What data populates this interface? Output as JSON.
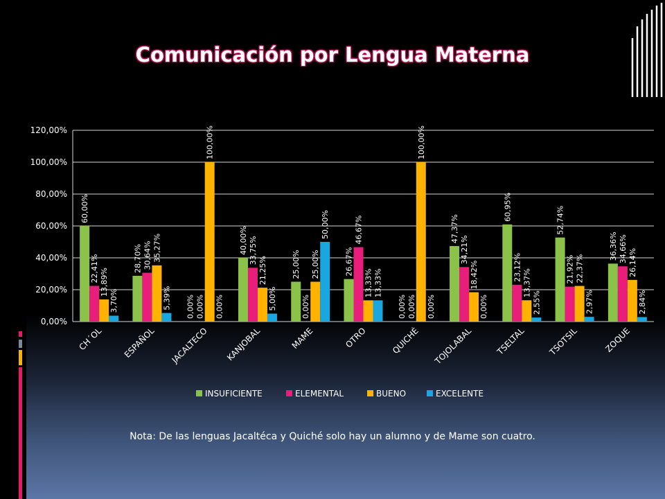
{
  "slide": {
    "title": "Comunicación  por Lengua Materna",
    "note": "Nota: De las lenguas Jacaltéca y Quiché solo hay un alumno y de Mame son cuatro."
  },
  "colors": {
    "INSUFICIENTE": "#8bc34a",
    "ELEMENTAL": "#e91e7a",
    "BUENO": "#ffb300",
    "EXCELENTE": "#1aa7e0",
    "deco_pink": "#e8196a",
    "deco_gold": "#f5b400",
    "deco_gray": "#7a8a9a"
  },
  "chart_data": {
    "type": "bar",
    "title": "",
    "xlabel": "",
    "ylabel": "",
    "ylim": [
      0,
      120
    ],
    "yticks": [
      "0,00%",
      "20,00%",
      "40,00%",
      "60,00%",
      "80,00%",
      "100,00%",
      "120,00%"
    ],
    "grid": true,
    "legend_position": "bottom",
    "categories": [
      "CH´OL",
      "ESPAÑOL",
      "JACALTECO",
      "KANJOBAL",
      "MAME",
      "OTRO",
      "QUICHÉ",
      "TOJOLABAL",
      "TSELTAL",
      "TSOTSIL",
      "ZOQUE"
    ],
    "series": [
      {
        "name": "INSUFICIENTE",
        "values": [
          60.0,
          28.7,
          0.0,
          40.0,
          25.0,
          26.67,
          0.0,
          47.37,
          60.95,
          52.74,
          36.36
        ],
        "labels": [
          "60,00%",
          "28,70%",
          "0,00%",
          "40,00%",
          "25,00%",
          "26,67%",
          "0,00%",
          "47,37%",
          "60,95%",
          "52,74%",
          "36,36%"
        ]
      },
      {
        "name": "ELEMENTAL",
        "values": [
          22.41,
          30.64,
          0.0,
          33.75,
          0.0,
          46.67,
          0.0,
          34.21,
          23.12,
          21.92,
          34.66
        ],
        "labels": [
          "22,41%",
          "30,64%",
          "0,00%",
          "33,75%",
          "0,00%",
          "46,67%",
          "0,00%",
          "34,21%",
          "23,12%",
          "21,92%",
          "34,66%"
        ]
      },
      {
        "name": "BUENO",
        "values": [
          13.89,
          35.27,
          100.0,
          21.25,
          25.0,
          13.33,
          100.0,
          18.42,
          13.37,
          22.37,
          26.14
        ],
        "labels": [
          "13,89%",
          "35,27%",
          "100,00%",
          "21,25%",
          "25,00%",
          "13,33%",
          "100,00%",
          "18,42%",
          "13,37%",
          "22,37%",
          "26,14%"
        ]
      },
      {
        "name": "EXCELENTE",
        "values": [
          3.7,
          5.39,
          0.0,
          5.0,
          50.0,
          13.33,
          0.0,
          0.0,
          2.55,
          2.97,
          2.84
        ],
        "labels": [
          "3,70%",
          "5,39%",
          "0,00%",
          "5,00%",
          "50,00%",
          "13,33%",
          "0,00%",
          "0,00%",
          "2,55%",
          "2,97%",
          "2,84%"
        ]
      }
    ]
  }
}
